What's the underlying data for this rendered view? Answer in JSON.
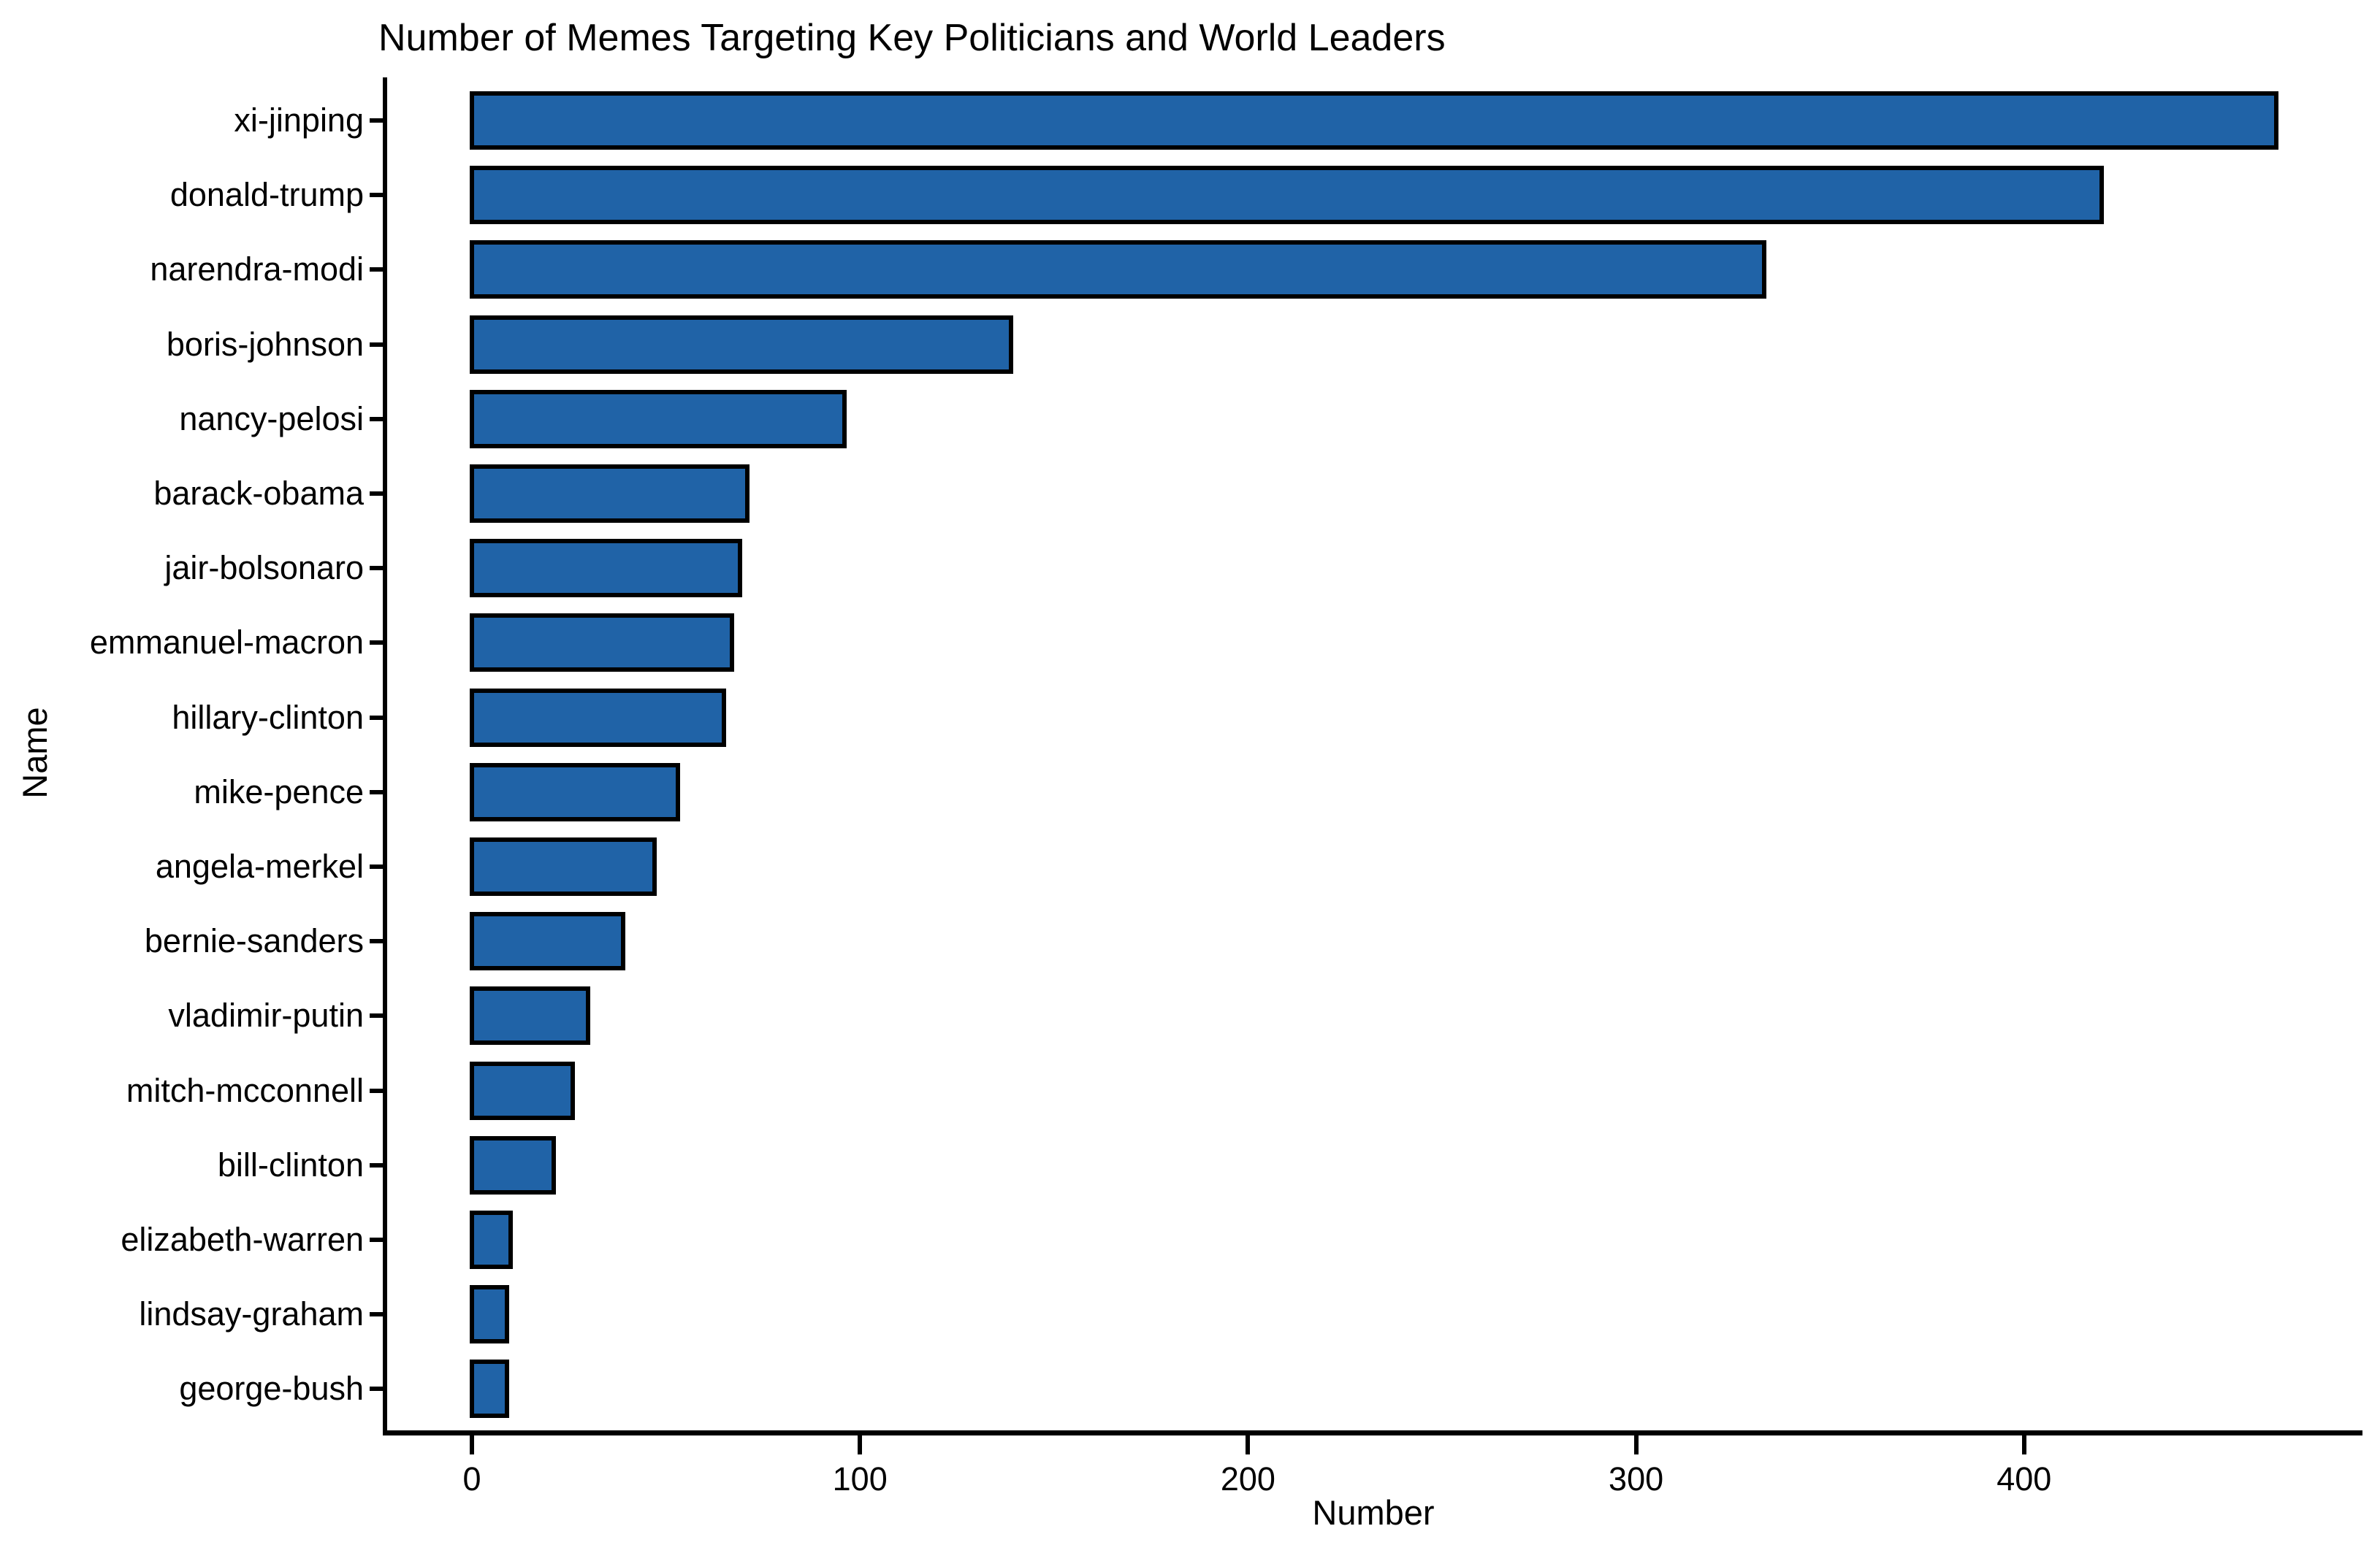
{
  "chart_data": {
    "type": "bar",
    "orientation": "horizontal",
    "title": "Number of Memes Targeting Key Politicians and World Leaders",
    "xlabel": "Number",
    "ylabel": "Name",
    "categories": [
      "xi-jinping",
      "donald-trump",
      "narendra-modi",
      "boris-johnson",
      "nancy-pelosi",
      "barack-obama",
      "jair-bolsonaro",
      "emmanuel-macron",
      "hillary-clinton",
      "mike-pence",
      "angela-merkel",
      "bernie-sanders",
      "vladimir-putin",
      "mitch-mcconnell",
      "bill-clinton",
      "elizabeth-warren",
      "lindsay-graham",
      "george-bush"
    ],
    "values": [
      465,
      420,
      333,
      139,
      96,
      71,
      69,
      67,
      65,
      53,
      47,
      39,
      30,
      26,
      21,
      10,
      9,
      9
    ],
    "x_ticks": [
      0,
      100,
      200,
      300,
      400
    ],
    "xlim": [
      -25,
      489
    ],
    "bar_color": "#2063A7",
    "bar_edge_color": "#000000",
    "text_color": "#000000",
    "background": "#FFFFFF",
    "grid": false,
    "legend": false
  }
}
